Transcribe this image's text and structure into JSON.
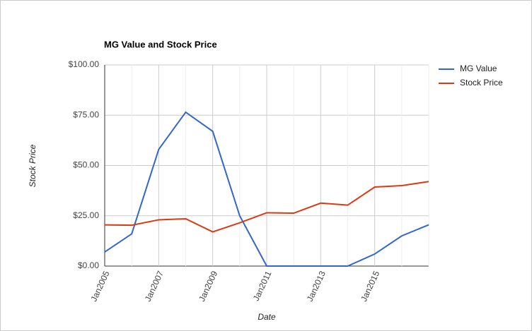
{
  "chart_data": {
    "type": "line",
    "title": "MG Value and Stock Price",
    "x_label": "Date",
    "y_label": "Stock Price",
    "categories": [
      "Jan2005",
      null,
      "Jan2007",
      null,
      "Jan2009",
      null,
      "Jan2011",
      null,
      "Jan2013",
      null,
      "Jan2015",
      null,
      null
    ],
    "series": [
      {
        "name": "MG Value",
        "color": "#3366cc",
        "values": [
          7,
          16,
          58,
          76.5,
          67,
          25,
          0,
          0,
          0,
          0,
          6,
          15,
          20.5
        ]
      },
      {
        "name": "Stock Price",
        "color": "#dc3912",
        "values": [
          20.5,
          20.3,
          23,
          23.5,
          17,
          21.5,
          26.5,
          26.3,
          31.3,
          30.3,
          39.3,
          40,
          42
        ]
      }
    ],
    "ylim": [
      0,
      100
    ],
    "yticks": [
      {
        "value": 0,
        "label": "$0.00"
      },
      {
        "value": 25,
        "label": "$25.00"
      },
      {
        "value": 50,
        "label": "$50.00"
      },
      {
        "value": 75,
        "label": "$75.00"
      },
      {
        "value": 100,
        "label": "$100.00"
      }
    ],
    "grid": true,
    "legend": "right"
  }
}
